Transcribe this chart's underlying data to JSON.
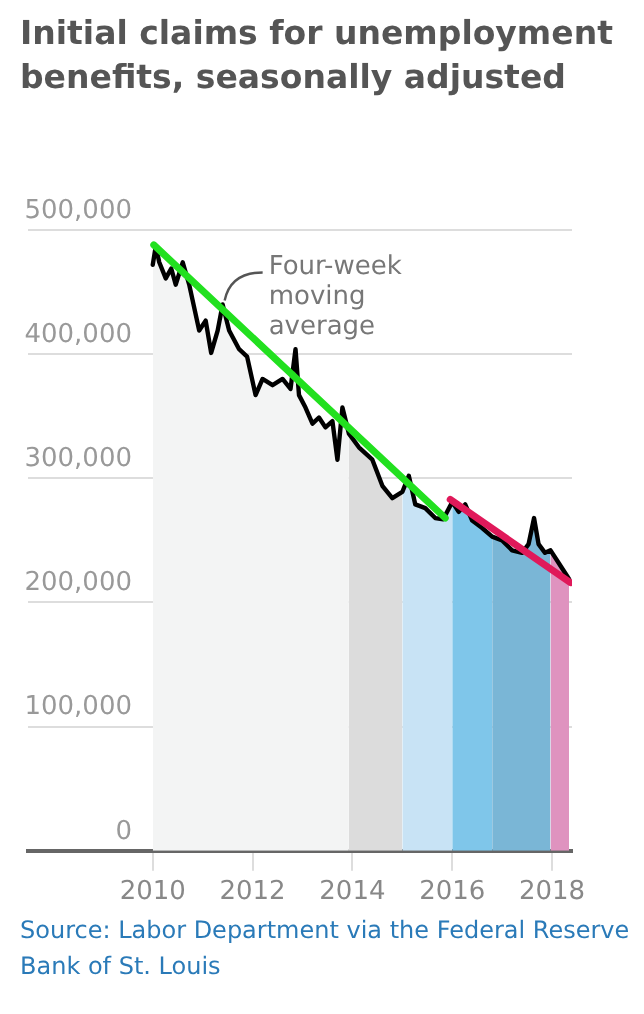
{
  "chart_data": {
    "type": "line",
    "title": "Initial claims for unemployment benefits, seasonally adjusted",
    "annotations": [
      {
        "text": "Four-week moving average",
        "x": 2011.4,
        "y": 440000
      },
      "Source: Labor Department via the Federal Reserve Bank of St. Louis"
    ],
    "xlim": [
      2007.5,
      2018.4
    ],
    "xticks": [
      2010,
      2012,
      2014,
      2016,
      2018
    ],
    "ylim": [
      0,
      500000
    ],
    "yticks": [
      0,
      {
        "value": 100000,
        "label": "100,000"
      },
      {
        "value": 200000,
        "label": "200,000"
      },
      {
        "value": 300000,
        "label": "300,000"
      },
      {
        "value": 400000,
        "label": "400,000"
      },
      {
        "value": 500000,
        "label": "500,000"
      }
    ],
    "grid": "y",
    "series": [
      {
        "type": "area",
        "color": "#f3f4f4",
        "x": [
          2010.0,
          2010.06,
          2010.13,
          2010.26,
          2010.37,
          2010.46,
          2010.6,
          2010.73,
          2010.93,
          2011.06,
          2011.17,
          2011.3,
          2011.4,
          2011.53,
          2011.73,
          2011.89,
          2012.06,
          2012.2,
          2012.4,
          2012.6,
          2012.76,
          2012.86,
          2012.93,
          2013.06,
          2013.2,
          2013.33,
          2013.46,
          2013.6,
          2013.7,
          2013.8,
          2013.93
        ],
        "values": [
          472000,
          487000,
          474000,
          461000,
          469000,
          456000,
          474000,
          456000,
          419000,
          427000,
          401000,
          419000,
          440000,
          419000,
          404000,
          398000,
          367000,
          380000,
          375000,
          380000,
          372000,
          404000,
          367000,
          357000,
          344000,
          349000,
          341000,
          346000,
          315000,
          357000,
          336000
        ]
      },
      {
        "type": "area",
        "color": "#dcdcdc",
        "x": [
          2013.93,
          2014.13,
          2014.4,
          2014.6,
          2014.8,
          2015.0
        ],
        "values": [
          336000,
          325000,
          315000,
          294000,
          284000,
          289000
        ]
      },
      {
        "type": "area",
        "color": "#c8e3f5",
        "x": [
          2015.0,
          2015.13,
          2015.26,
          2015.46,
          2015.66,
          2015.82,
          2016.0
        ],
        "values": [
          289000,
          302000,
          279000,
          276000,
          268000,
          267000,
          281000
        ]
      },
      {
        "type": "area",
        "color": "#7fc6ea",
        "x": [
          2016.0,
          2016.13,
          2016.26,
          2016.4,
          2016.6,
          2016.8
        ],
        "values": [
          281000,
          273000,
          279000,
          266000,
          260000,
          253000
        ]
      },
      {
        "type": "area",
        "color": "#7ab6d6",
        "x": [
          2016.8,
          2017.0,
          2017.2,
          2017.4,
          2017.53,
          2017.64,
          2017.73,
          2017.86,
          2017.97
        ],
        "values": [
          253000,
          250000,
          242000,
          240000,
          247000,
          268000,
          247000,
          240000,
          242000
        ]
      },
      {
        "type": "area",
        "color": "#df93bf",
        "x": [
          2017.97,
          2018.13,
          2018.26,
          2018.34
        ],
        "values": [
          242000,
          232000,
          224000,
          219000
        ]
      },
      {
        "color": "#000000",
        "x": [
          2010.0,
          2010.06,
          2010.13,
          2010.26,
          2010.37,
          2010.46,
          2010.6,
          2010.73,
          2010.93,
          2011.06,
          2011.17,
          2011.3,
          2011.4,
          2011.53,
          2011.73,
          2011.89,
          2012.06,
          2012.2,
          2012.4,
          2012.6,
          2012.76,
          2012.86,
          2012.93,
          2013.06,
          2013.2,
          2013.33,
          2013.46,
          2013.6,
          2013.7,
          2013.8,
          2013.93,
          2014.13,
          2014.4,
          2014.6,
          2014.8,
          2015.0,
          2015.13,
          2015.26,
          2015.46,
          2015.66,
          2015.82,
          2016.0,
          2016.13,
          2016.26,
          2016.4,
          2016.6,
          2016.8,
          2017.0,
          2017.2,
          2017.4,
          2017.53,
          2017.64,
          2017.73,
          2017.86,
          2017.97,
          2018.13,
          2018.26,
          2018.34
        ],
        "values": [
          472000,
          487000,
          474000,
          461000,
          469000,
          456000,
          474000,
          456000,
          419000,
          427000,
          401000,
          419000,
          440000,
          419000,
          404000,
          398000,
          367000,
          380000,
          375000,
          380000,
          372000,
          404000,
          367000,
          357000,
          344000,
          349000,
          341000,
          346000,
          315000,
          357000,
          336000,
          325000,
          315000,
          294000,
          284000,
          289000,
          302000,
          279000,
          276000,
          268000,
          267000,
          281000,
          273000,
          279000,
          266000,
          260000,
          253000,
          250000,
          242000,
          240000,
          247000,
          268000,
          247000,
          240000,
          242000,
          232000,
          224000,
          219000
        ]
      },
      {
        "color": "#22e01f",
        "x": [
          2010.02,
          2015.86
        ],
        "values": [
          488000,
          268000
        ]
      },
      {
        "color": "#e0195a",
        "x": [
          2015.96,
          2018.37
        ],
        "values": [
          283000,
          216000
        ]
      }
    ]
  }
}
